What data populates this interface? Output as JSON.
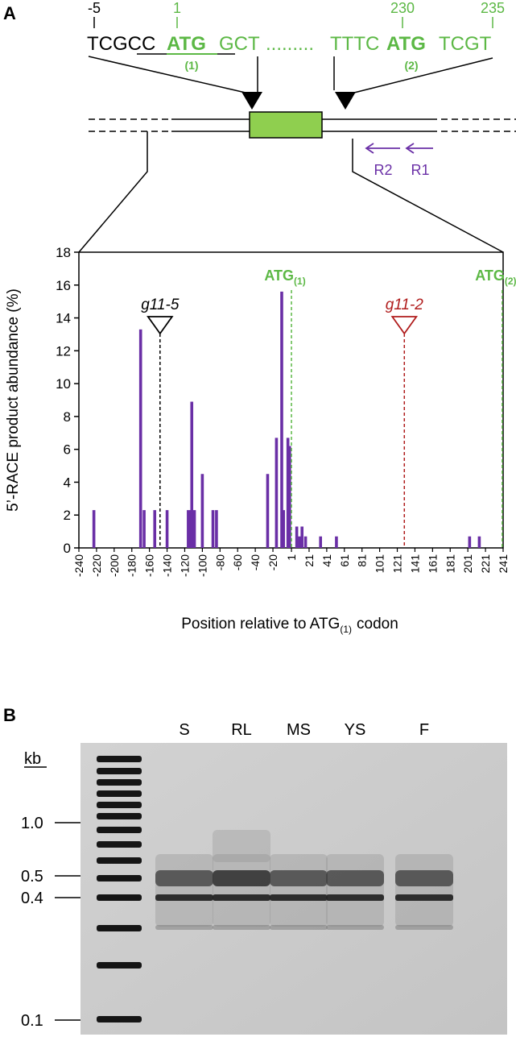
{
  "panel_a": {
    "label": "A",
    "positions": [
      "-5",
      "1",
      "230",
      "235"
    ],
    "sequence": [
      "TCGCC",
      "ATG",
      "GCT",
      ".........",
      "TTTC",
      "ATG",
      "TCGT"
    ],
    "codon_numbers": [
      "(1)",
      "(2)"
    ],
    "primers": [
      "R2",
      "R1"
    ]
  },
  "chart_data": {
    "type": "bar",
    "x": [
      -223,
      -170,
      -166,
      -154,
      -140,
      -116,
      -113,
      -112,
      -109,
      -100,
      -88,
      -84,
      -26,
      -16,
      -10,
      -8,
      -3,
      -1,
      7,
      10,
      13,
      17,
      34,
      52,
      203,
      214
    ],
    "values": [
      2.3,
      13.3,
      2.3,
      2.3,
      2.3,
      2.3,
      2.3,
      8.9,
      2.3,
      4.5,
      2.3,
      2.3,
      4.5,
      6.7,
      15.6,
      2.3,
      6.7,
      6.2,
      1.3,
      0.7,
      1.3,
      0.7,
      0.7,
      0.7,
      0.7,
      0.7
    ],
    "color": "#6a2fa6",
    "xlim": [
      -240,
      241
    ],
    "xticks": [
      -240,
      -220,
      -200,
      -180,
      -160,
      -140,
      -120,
      -100,
      -80,
      -60,
      -40,
      -20,
      1,
      21,
      41,
      61,
      81,
      101,
      121,
      141,
      161,
      181,
      201,
      221,
      241
    ],
    "ylim": [
      0,
      18
    ],
    "yticks": [
      0,
      2,
      4,
      6,
      8,
      10,
      12,
      14,
      16,
      18
    ],
    "y_label": "5’-RACE product abundance (%)",
    "x_label": [
      "Position relative to ATG",
      "(1)",
      "codon"
    ],
    "insertions": [
      {
        "label": "g11-5",
        "x": -148,
        "color": "#000000"
      },
      {
        "label": "g11-2",
        "x": 129,
        "color": "#b01c1c"
      }
    ],
    "codons": [
      {
        "label": "ATG",
        "sub": "(1)",
        "x": 1,
        "color": "#5cb845"
      },
      {
        "label": "ATG",
        "sub": "(2)",
        "x": 240,
        "color": "#5cb845"
      }
    ]
  },
  "panel_b": {
    "label": "B",
    "unit": "kb",
    "lanes": [
      "S",
      "RL",
      "MS",
      "YS",
      "F"
    ],
    "sizes": [
      "1.0",
      "0.5",
      "0.4",
      "0.1"
    ]
  }
}
